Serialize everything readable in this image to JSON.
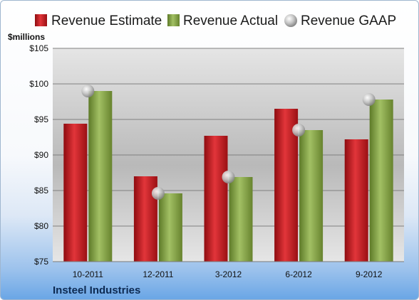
{
  "chart_data": {
    "type": "bar",
    "title": "",
    "ylabel": "$millions",
    "xlabel": "",
    "ylim": [
      75,
      105
    ],
    "yticks": [
      75,
      80,
      85,
      90,
      95,
      100,
      105
    ],
    "ytick_labels": [
      "$75",
      "$80",
      "$85",
      "$90",
      "$95",
      "$100",
      "$105"
    ],
    "grid": true,
    "legend_position": "top",
    "categories": [
      "10-2011",
      "12-2011",
      "3-2012",
      "6-2012",
      "9-2012"
    ],
    "series": [
      {
        "name": "Revenue Estimate",
        "kind": "bar",
        "color": "#cc1f24",
        "values": [
          94.4,
          87.0,
          92.7,
          96.5,
          92.2
        ]
      },
      {
        "name": "Revenue Actual",
        "kind": "bar",
        "color": "#8aa84a",
        "values": [
          99.0,
          84.6,
          86.9,
          93.5,
          97.8
        ]
      },
      {
        "name": "Revenue GAAP",
        "kind": "marker",
        "color": "#b9b9b9",
        "values": [
          99.0,
          84.6,
          86.9,
          93.5,
          97.8
        ]
      }
    ],
    "footer": "Insteel Industries"
  }
}
